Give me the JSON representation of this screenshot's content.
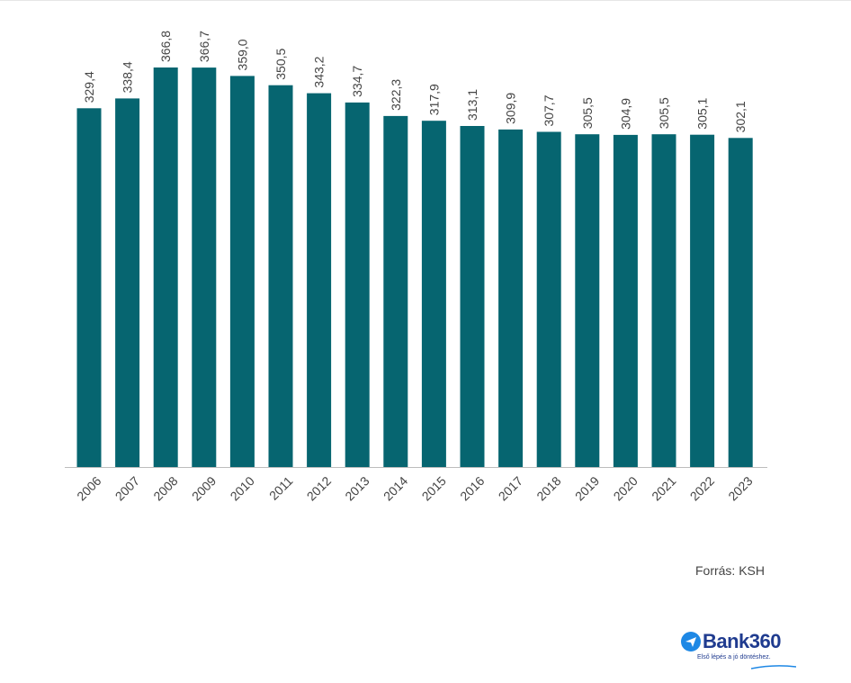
{
  "chart_data": {
    "type": "bar",
    "categories": [
      "2006",
      "2007",
      "2008",
      "2009",
      "2010",
      "2011",
      "2012",
      "2013",
      "2014",
      "2015",
      "2016",
      "2017",
      "2018",
      "2019",
      "2020",
      "2021",
      "2022",
      "2023"
    ],
    "values": [
      329.4,
      338.4,
      366.8,
      366.7,
      359.0,
      350.5,
      343.2,
      334.7,
      322.3,
      317.9,
      313.1,
      309.9,
      307.7,
      305.5,
      304.9,
      305.5,
      305.1,
      302.1
    ],
    "value_labels": [
      "329,4",
      "338,4",
      "366,8",
      "366,7",
      "359,0",
      "350,5",
      "343,2",
      "334,7",
      "322,3",
      "317,9",
      "313,1",
      "309,9",
      "307,7",
      "305,5",
      "304,9",
      "305,5",
      "305,1",
      "302,1"
    ],
    "ylim": [
      0,
      420
    ],
    "grid": false,
    "bar_color": "#066570",
    "axis_color": "#bdbdbd",
    "label_color": "#444444"
  },
  "source_text": "Forrás: KSH",
  "brand": {
    "name": "Bank360",
    "tagline": "Első lépés a jó döntéshez.",
    "color": "#1f3b8f",
    "accent": "#1e88e5"
  }
}
